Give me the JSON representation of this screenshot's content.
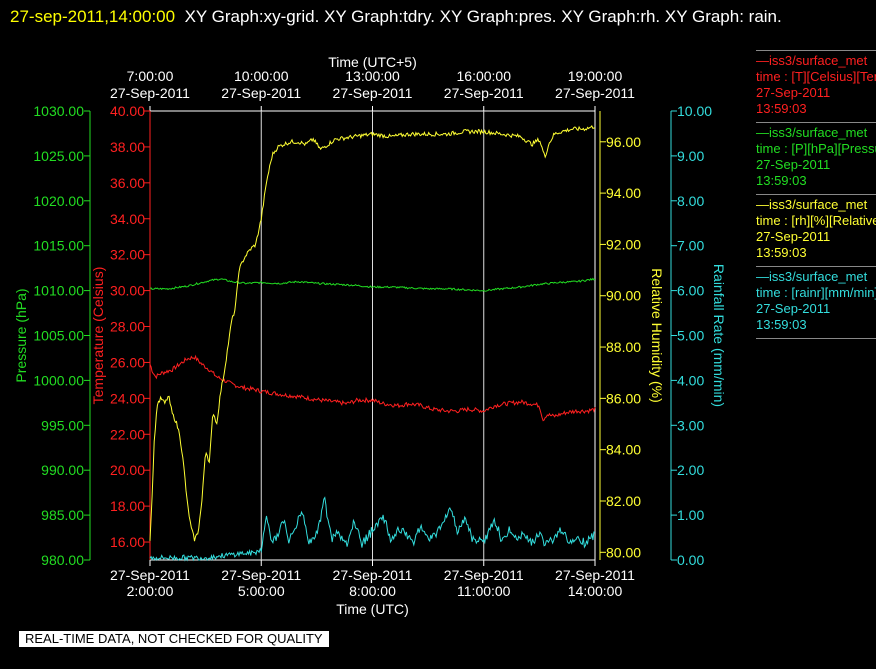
{
  "title": {
    "timestamp": "27-sep-2011,14:00:00",
    "text": "XY Graph:xy-grid.  XY Graph:tdry.  XY Graph:pres.  XY Graph:rh.  XY Graph: rain."
  },
  "banner": "REAL-TIME DATA, NOT CHECKED FOR QUALITY",
  "legend": [
    {
      "line1": "—iss3/surface_met",
      "line2": "time : [T][Celsius][Temperature]",
      "line3": "27-Sep-2011",
      "line4": "13:59:03",
      "color": "#ff2020"
    },
    {
      "line1": "—iss3/surface_met",
      "line2": "time : [P][hPa][Pressure]",
      "line3": "27-Sep-2011",
      "line4": "13:59:03",
      "color": "#22dd22"
    },
    {
      "line1": "—iss3/surface_met",
      "line2": "time : [rh][%][Relative Humidity]",
      "line3": "27-Sep-2011",
      "line4": "13:59:03",
      "color": "#ffff33"
    },
    {
      "line1": "—iss3/surface_met",
      "line2": "time : [rainr][mm/min][Rainfall Rate]",
      "line3": "27-Sep-2011",
      "line4": "13:59:03",
      "color": "#33dddd"
    }
  ],
  "chart_data": {
    "type": "line",
    "x_unit": "hours UTC",
    "xlabel_bottom": "Time (UTC)",
    "xlabel_top": "Time (UTC+5)",
    "xlim": [
      2,
      14
    ],
    "bottom_ticks": [
      {
        "x": 2,
        "date": "27-Sep-2011",
        "time": "2:00:00"
      },
      {
        "x": 5,
        "date": "27-Sep-2011",
        "time": "5:00:00"
      },
      {
        "x": 8,
        "date": "27-Sep-2011",
        "time": "8:00:00"
      },
      {
        "x": 11,
        "date": "27-Sep-2011",
        "time": "11:00:00"
      },
      {
        "x": 14,
        "date": "27-Sep-2011",
        "time": "14:00:00"
      }
    ],
    "top_ticks": [
      {
        "x": 2,
        "date": "27-Sep-2011",
        "time": "7:00:00"
      },
      {
        "x": 5,
        "date": "27-Sep-2011",
        "time": "10:00:00"
      },
      {
        "x": 8,
        "date": "27-Sep-2011",
        "time": "13:00:00"
      },
      {
        "x": 11,
        "date": "27-Sep-2011",
        "time": "16:00:00"
      },
      {
        "x": 14,
        "date": "27-Sep-2011",
        "time": "19:00:00"
      }
    ],
    "grid": true,
    "axes": [
      {
        "id": "pres",
        "label": "Pressure (hPa)",
        "color": "#22dd22",
        "range": [
          980,
          1030
        ],
        "step": 5,
        "decimals": 2
      },
      {
        "id": "temp",
        "label": "Temperature (Celsius)",
        "color": "#ff2020",
        "range": [
          15,
          40
        ],
        "step": 2,
        "tick_start": 16,
        "decimals": 2
      },
      {
        "id": "rh",
        "label": "Relative Humidity (%)",
        "color": "#ffff33",
        "range": [
          79.7,
          97.2
        ],
        "step": 2,
        "tick_start": 80,
        "decimals": 2
      },
      {
        "id": "rain",
        "label": "Rainfall Rate (mm/min)",
        "color": "#33dddd",
        "range": [
          0,
          10
        ],
        "step": 1,
        "decimals": 2
      }
    ],
    "series": [
      {
        "name": "Temperature",
        "axis": "temp",
        "color": "#ff2020",
        "jitter": 0.12,
        "x": [
          2,
          2.07,
          2.15,
          2.3,
          2.6,
          2.8,
          3.0,
          3.2,
          3.4,
          3.6,
          3.8,
          4.0,
          4.2,
          4.5,
          4.8,
          5.0,
          5.3,
          5.6,
          6.0,
          6.3,
          6.6,
          7.0,
          7.3,
          7.6,
          8.0,
          8.3,
          8.7,
          9.0,
          9.3,
          9.6,
          10.0,
          10.3,
          10.6,
          11.0,
          11.3,
          11.6,
          12.0,
          12.3,
          12.5,
          12.6,
          12.7,
          12.9,
          13.2,
          13.5,
          13.8,
          14.0
        ],
        "y": [
          25.9,
          25.5,
          25.2,
          25.4,
          25.6,
          25.9,
          26.2,
          26.3,
          25.9,
          25.6,
          25.2,
          25.0,
          24.8,
          24.6,
          24.5,
          24.4,
          24.3,
          24.2,
          24.1,
          24.0,
          23.9,
          23.8,
          23.7,
          23.9,
          23.9,
          23.7,
          23.6,
          23.7,
          23.6,
          23.4,
          23.3,
          23.3,
          23.4,
          23.3,
          23.6,
          23.7,
          23.8,
          23.7,
          23.6,
          22.8,
          23.1,
          23.0,
          23.2,
          23.3,
          23.3,
          23.4
        ]
      },
      {
        "name": "Pressure",
        "axis": "pres",
        "color": "#22dd22",
        "jitter": 0.1,
        "x": [
          2,
          2.5,
          3.0,
          3.3,
          3.6,
          3.9,
          4.2,
          4.6,
          5.0,
          5.5,
          6.0,
          6.5,
          7.0,
          7.5,
          8.0,
          8.5,
          9.0,
          9.5,
          10.0,
          10.5,
          11.0,
          11.5,
          12.0,
          12.5,
          13.0,
          13.5,
          14.0
        ],
        "y": [
          1010.2,
          1010.2,
          1010.5,
          1010.8,
          1011.1,
          1011.3,
          1011.0,
          1010.8,
          1010.9,
          1010.8,
          1011.0,
          1010.8,
          1010.7,
          1010.6,
          1010.4,
          1010.4,
          1010.3,
          1010.2,
          1010.2,
          1010.1,
          1010.0,
          1010.2,
          1010.4,
          1010.7,
          1010.9,
          1011.0,
          1011.3
        ]
      },
      {
        "name": "Relative Humidity",
        "axis": "rh",
        "color": "#ffff33",
        "jitter": 0.08,
        "x": [
          2,
          2.05,
          2.12,
          2.2,
          2.3,
          2.4,
          2.5,
          2.6,
          2.7,
          2.8,
          2.9,
          3.0,
          3.1,
          3.2,
          3.3,
          3.4,
          3.5,
          3.6,
          3.7,
          3.8,
          3.9,
          4.0,
          4.1,
          4.2,
          4.3,
          4.4,
          4.55,
          4.7,
          4.85,
          5.0,
          5.15,
          5.3,
          5.45,
          5.6,
          5.8,
          6.0,
          6.2,
          6.4,
          6.6,
          7.0,
          7.5,
          8.0,
          8.5,
          9.0,
          9.5,
          10.0,
          10.5,
          11.0,
          11.5,
          12.0,
          12.3,
          12.5,
          12.65,
          12.75,
          12.9,
          13.1,
          13.4,
          13.7,
          14.0
        ],
        "y": [
          80.5,
          82.0,
          84.5,
          85.8,
          86.0,
          85.8,
          86.1,
          85.4,
          85.1,
          84.6,
          83.5,
          82.0,
          81.0,
          80.5,
          80.8,
          82.0,
          84.0,
          83.5,
          85.5,
          85.0,
          86.2,
          87.0,
          88.0,
          89.0,
          89.5,
          91.0,
          91.5,
          91.8,
          92.0,
          93.0,
          94.5,
          95.5,
          95.8,
          95.9,
          96.0,
          96.0,
          95.9,
          96.1,
          95.7,
          96.1,
          96.2,
          96.3,
          96.2,
          96.3,
          96.3,
          96.3,
          96.4,
          96.4,
          96.3,
          96.2,
          95.9,
          96.1,
          95.4,
          95.9,
          96.3,
          96.4,
          96.5,
          96.5,
          96.6
        ]
      },
      {
        "name": "Rainfall Rate",
        "axis": "rain",
        "color": "#33dddd",
        "jitter": 0.06,
        "x": [
          2,
          2.5,
          3.0,
          3.5,
          4.0,
          4.5,
          4.8,
          5.0,
          5.15,
          5.3,
          5.45,
          5.6,
          5.75,
          5.9,
          6.1,
          6.3,
          6.5,
          6.7,
          6.9,
          7.1,
          7.3,
          7.5,
          7.7,
          7.9,
          8.1,
          8.3,
          8.5,
          8.7,
          8.9,
          9.1,
          9.3,
          9.5,
          9.7,
          9.9,
          10.1,
          10.3,
          10.5,
          10.7,
          10.9,
          11.1,
          11.3,
          11.5,
          11.7,
          11.9,
          12.1,
          12.3,
          12.5,
          12.7,
          12.9,
          13.1,
          13.3,
          13.5,
          13.7,
          13.9,
          14.0
        ],
        "y": [
          0.05,
          0.05,
          0.05,
          0.05,
          0.1,
          0.15,
          0.15,
          0.25,
          0.9,
          0.3,
          0.5,
          0.8,
          0.3,
          0.6,
          1.0,
          0.3,
          0.5,
          1.3,
          0.4,
          0.5,
          0.3,
          0.8,
          0.3,
          0.5,
          0.7,
          0.9,
          0.3,
          0.6,
          0.5,
          0.3,
          0.7,
          0.4,
          0.5,
          0.8,
          1.1,
          0.5,
          0.9,
          0.4,
          0.3,
          0.5,
          0.8,
          0.3,
          0.6,
          0.4,
          0.5,
          0.3,
          0.5,
          0.3,
          0.4,
          0.6,
          0.3,
          0.4,
          0.3,
          0.4,
          0.6
        ]
      }
    ]
  }
}
